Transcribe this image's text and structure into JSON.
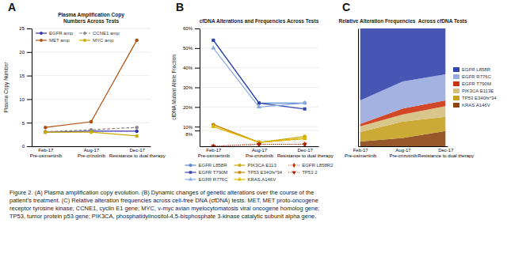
{
  "chart_data": [
    {
      "type": "line",
      "title": "Plasma Amplification Copy\nNumbers Across Tests",
      "annotations": [
        "A"
      ],
      "categories": [
        "Feb-17\nPre-osimertinib",
        "Aug-17\nPre-crizotinib",
        "Dec-17\nResistance to dual therapy"
      ],
      "ylabel": "Plasma Copy Number",
      "ylim": [
        0,
        25
      ],
      "yticks": [
        0,
        5,
        10,
        15,
        20,
        25
      ],
      "grid": true,
      "legend": "upper left",
      "series": [
        {
          "name": "EGFR amp",
          "color": "#3333aa",
          "marker": "circle",
          "line_style": "solid",
          "values": [
            3.0,
            3.2,
            3.2
          ]
        },
        {
          "name": "MET amp",
          "color": "#b05010",
          "marker": "circle",
          "line_style": "solid",
          "values": [
            4.0,
            5.2,
            22.5
          ]
        },
        {
          "name": "CCNE1 amp",
          "color": "#888888",
          "marker": "circle",
          "line_style": "dashed",
          "values": [
            3.1,
            3.5,
            4.0
          ]
        },
        {
          "name": "MYC amp",
          "color": "#ccaa00",
          "marker": "circle",
          "line_style": "solid",
          "values": [
            3.0,
            3.0,
            2.2
          ]
        }
      ]
    },
    {
      "type": "line",
      "title": "cfDNA Alterations and Frequencies Across Tests",
      "annotations": [
        "B"
      ],
      "categories": [
        "Feb-17\nPre-osimertinib",
        "Aug-17\nPre-crizotinib",
        "Dec-17\nResistance to dual therapy"
      ],
      "ylabel": "cfDNA Mutant Allele Fraction",
      "ylim": [
        0,
        0.6
      ],
      "yticks": [
        {
          "value": 0.08,
          "label": "8%"
        },
        {
          "value": 0.1,
          "label": "10%"
        },
        {
          "value": 0.2,
          "label": "20%"
        },
        {
          "value": 0.3,
          "label": "30%"
        },
        {
          "value": 0.4,
          "label": "40%"
        },
        {
          "value": 0.5,
          "label": "50%"
        },
        {
          "value": 0.6,
          "label": "60%"
        }
      ],
      "grid": true,
      "legend": "bottom",
      "series": [
        {
          "name": "EGFR L858R",
          "color": "#5588cc",
          "marker": "circle",
          "line_style": "solid",
          "values": [
            0.54,
            0.22,
            0.22
          ]
        },
        {
          "name": "EGFR T790M",
          "color": "#3344aa",
          "marker": "square",
          "line_style": "solid",
          "values": [
            0.54,
            0.22,
            0.19
          ]
        },
        {
          "name": "EGFR R776C",
          "color": "#88aadd",
          "marker": "triangle-up",
          "line_style": "solid",
          "values": [
            0.5,
            0.2,
            0.22
          ]
        },
        {
          "name": "PIK3CA E113",
          "color": "#ccaa00",
          "marker": "circle",
          "line_style": "solid",
          "values": [
            0.11,
            0.02,
            0.05
          ]
        },
        {
          "name": "TP53 E340fs*34",
          "color": "#cc8800",
          "marker": "square",
          "line_style": "solid",
          "values": [
            0.11,
            0.02,
            0.04
          ]
        },
        {
          "name": "KRAS A146V",
          "color": "#ddbb00",
          "marker": "triangle-up",
          "line_style": "solid",
          "values": [
            0.1,
            0.02,
            0.04
          ]
        },
        {
          "name": "EGFR L858R2",
          "color": "#cc3300",
          "marker": "diamond",
          "line_style": "dotted",
          "values": [
            0.0,
            0.01,
            0.01
          ]
        },
        {
          "name": "TP53 2",
          "color": "#aa2200",
          "marker": "triangle-down",
          "line_style": "dotted",
          "values": [
            0.0,
            0.01,
            0.01
          ]
        }
      ]
    },
    {
      "type": "area",
      "stacked": true,
      "title": "Relative Alteration Frequencies  Across cfDNA Tests",
      "annotations": [
        "C"
      ],
      "categories": [
        "Feb-17\nPre-osimertinib",
        "Aug-17\nPre-crizotinib",
        "Dec-17\nResistance to dual therapy"
      ],
      "ylim": [
        0,
        1
      ],
      "tick_labels": "x",
      "legend": "right",
      "series": [
        {
          "name": "KRAS A146V",
          "color": "#8B4513",
          "values": [
            0.04,
            0.07,
            0.13
          ]
        },
        {
          "name": "TP53 E340fs*34",
          "color": "#c8a020",
          "values": [
            0.08,
            0.14,
            0.12
          ]
        },
        {
          "name": "PIK3CA E113E",
          "color": "#d4c080",
          "values": [
            0.05,
            0.06,
            0.09
          ]
        },
        {
          "name": "EGFR T790M",
          "color": "#cc3311",
          "values": [
            0.02,
            0.05,
            0.05
          ]
        },
        {
          "name": "EGFR R776C",
          "color": "#99aadd",
          "values": [
            0.2,
            0.23,
            0.22
          ]
        },
        {
          "name": "EGFR L858R",
          "color": "#3344aa",
          "values": [
            0.61,
            0.45,
            0.39
          ]
        }
      ]
    }
  ],
  "caption": "Figure 2. (A) Plasma amplification copy evolution. (B) Dynamic changes of genetic alterations over the course of the\npatient’s treatment. (C) Relative alteration frequencies across cell-free DNA (cfDNA) tests. MET, MET proto-oncogene\nreceptor tyrosine kinase; CCNE1, cyclin E1 gene; MYC, v-myc avian myelocytomatosis viral oncogene homolog gene;\nTP53, tumor protein p53 gene; PIK3CA, phosphatidylinositol-4,5-bisphosphate 3-kinase catalytic subunit alpha gene."
}
